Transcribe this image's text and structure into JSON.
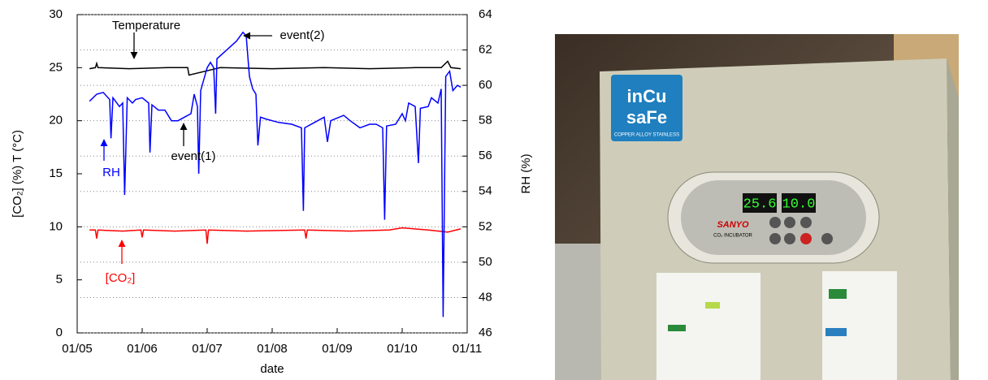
{
  "chart_data": {
    "type": "line",
    "xlabel": "date",
    "ylabel": "[CO₂] (%)  T (°C)",
    "y2label": "RH (%)",
    "xlim": [
      5,
      11
    ],
    "xticks": [
      {
        "value": 5,
        "label": "01/05"
      },
      {
        "value": 6,
        "label": "01/06"
      },
      {
        "value": 7,
        "label": "01/07"
      },
      {
        "value": 8,
        "label": "01/08"
      },
      {
        "value": 9,
        "label": "01/09"
      },
      {
        "value": 10,
        "label": "01/10"
      },
      {
        "value": 11,
        "label": "01/11"
      }
    ],
    "ylim": [
      0,
      30
    ],
    "yticks": [
      0,
      5,
      10,
      15,
      20,
      25,
      30
    ],
    "y2lim": [
      46,
      64
    ],
    "y2ticks": [
      46,
      48,
      50,
      52,
      54,
      56,
      58,
      60,
      62,
      64
    ],
    "grid": "y2",
    "series": [
      {
        "name": "Temperature",
        "color": "#000000",
        "x": [
          5.19,
          5.28,
          5.3,
          5.32,
          5.8,
          6.4,
          6.7,
          6.72,
          7.2,
          8.0,
          8.8,
          9.5,
          10.2,
          10.6,
          10.7,
          10.75,
          10.9
        ],
        "values": [
          24.9,
          25.0,
          25.4,
          25.0,
          24.9,
          25.0,
          25.0,
          24.3,
          25.0,
          24.9,
          25.0,
          24.9,
          25.0,
          25.0,
          25.6,
          25.0,
          24.9
        ]
      },
      {
        "name": "[CO₂]",
        "color": "#ff0000",
        "x": [
          5.19,
          5.28,
          5.3,
          5.32,
          5.7,
          5.98,
          6.0,
          6.02,
          6.5,
          6.98,
          7.0,
          7.02,
          7.6,
          8.5,
          8.52,
          8.54,
          9.2,
          9.8,
          10.0,
          10.4,
          10.7,
          10.9
        ],
        "values": [
          9.7,
          9.7,
          8.9,
          9.7,
          9.6,
          9.7,
          9.0,
          9.7,
          9.6,
          9.7,
          8.4,
          9.7,
          9.6,
          9.7,
          8.9,
          9.7,
          9.6,
          9.7,
          9.9,
          9.7,
          9.5,
          9.8
        ]
      },
      {
        "name": "RH",
        "color": "#0000ff",
        "axis": "y2",
        "x": [
          5.19,
          5.3,
          5.4,
          5.5,
          5.52,
          5.55,
          5.65,
          5.7,
          5.73,
          5.77,
          5.85,
          5.9,
          6.0,
          6.1,
          6.12,
          6.15,
          6.25,
          6.35,
          6.45,
          6.55,
          6.65,
          6.75,
          6.8,
          6.85,
          6.87,
          6.9,
          7.0,
          7.05,
          7.1,
          7.13,
          7.15,
          7.3,
          7.45,
          7.55,
          7.6,
          7.65,
          7.7,
          7.75,
          7.78,
          7.82,
          7.9,
          8.1,
          8.3,
          8.45,
          8.48,
          8.5,
          8.7,
          8.8,
          8.85,
          8.9,
          9.1,
          9.2,
          9.35,
          9.5,
          9.6,
          9.7,
          9.73,
          9.76,
          9.9,
          10.0,
          10.05,
          10.1,
          10.2,
          10.25,
          10.28,
          10.4,
          10.45,
          10.55,
          10.6,
          10.63,
          10.67,
          10.73,
          10.78,
          10.85,
          10.9
        ],
        "values": [
          59.1,
          59.5,
          59.6,
          59.2,
          57.0,
          59.3,
          58.8,
          59.0,
          53.8,
          59.3,
          59.0,
          59.2,
          59.3,
          59.0,
          56.2,
          58.9,
          58.6,
          58.6,
          58.0,
          58.0,
          58.2,
          58.4,
          59.5,
          58.8,
          55.0,
          59.7,
          61.0,
          61.3,
          61.0,
          58.4,
          61.5,
          62.0,
          62.5,
          63.0,
          62.8,
          60.5,
          59.8,
          59.5,
          56.6,
          58.2,
          58.1,
          57.9,
          57.8,
          57.6,
          52.9,
          57.6,
          58.0,
          58.2,
          56.8,
          58.0,
          58.3,
          58.0,
          57.6,
          57.8,
          57.8,
          57.6,
          52.4,
          57.7,
          57.8,
          58.4,
          58.0,
          59.0,
          58.8,
          55.6,
          58.7,
          58.8,
          59.3,
          59.0,
          59.8,
          46.9,
          60.5,
          60.8,
          59.7,
          60.0,
          59.9
        ]
      }
    ],
    "annotations": [
      {
        "text": "Temperature",
        "color": "#000000"
      },
      {
        "text": "RH",
        "color": "#0000ff"
      },
      {
        "text": "[CO₂]",
        "color": "#ff0000"
      },
      {
        "text": "event(1)",
        "color": "#000000"
      },
      {
        "text": "event(2)",
        "color": "#000000"
      }
    ]
  },
  "photo": {
    "logo_line1": "inCu",
    "logo_line2": "saFe",
    "logo_caption": "COPPER ALLOY STAINLESS",
    "display_temp": "25.6",
    "display_co2": "10.0",
    "brand": "SANYO",
    "model": "CO₂ INCUBATOR"
  }
}
